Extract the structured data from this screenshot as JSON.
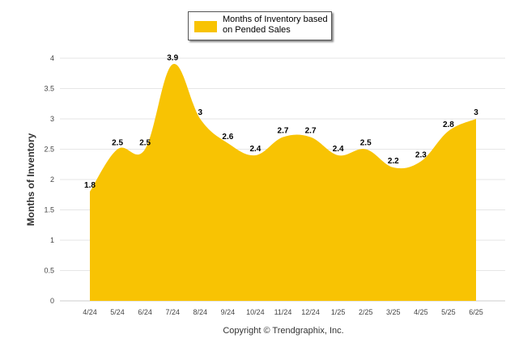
{
  "chart_data": {
    "type": "area",
    "categories": [
      "4/24",
      "5/24",
      "6/24",
      "7/24",
      "8/24",
      "9/24",
      "10/24",
      "11/24",
      "12/24",
      "1/25",
      "2/25",
      "3/25",
      "4/25",
      "5/25",
      "6/25"
    ],
    "series": [
      {
        "name": "Months of Inventory based on Pended Sales",
        "values": [
          1.8,
          2.5,
          2.5,
          3.9,
          3,
          2.6,
          2.4,
          2.7,
          2.7,
          2.4,
          2.5,
          2.2,
          2.3,
          2.8,
          3
        ],
        "color": "#F8C303"
      }
    ],
    "ylabel": "Months of Inventory",
    "xlabel": "",
    "ylim": [
      0,
      4
    ],
    "yticks": [
      "0",
      "0.5",
      "1",
      "1.5",
      "2",
      "2.5",
      "3",
      "3.5",
      "4"
    ],
    "grid": true,
    "legend_position": "top-center",
    "credit": "Copyright © Trendgraphix, Inc."
  }
}
